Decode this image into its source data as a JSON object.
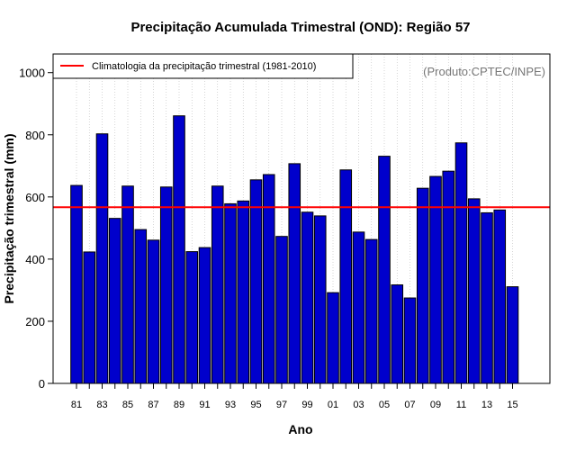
{
  "colors": {
    "bar": "#0000CC",
    "climatology": "#FF0000",
    "grid": "#BBBBBB",
    "credit": "#777777"
  },
  "chart_data": {
    "type": "bar",
    "title": "Precipitação Acumulada Trimestral (OND): Região 57",
    "xlabel": "Ano",
    "ylabel": "Precipitação trimestral (mm)",
    "ylim": [
      0,
      1060
    ],
    "yticks": [
      0,
      200,
      400,
      600,
      800,
      1000
    ],
    "categories": [
      "1981",
      "1982",
      "1983",
      "1984",
      "1985",
      "1986",
      "1987",
      "1988",
      "1989",
      "1990",
      "1991",
      "1992",
      "1993",
      "1994",
      "1995",
      "1996",
      "1997",
      "1998",
      "1999",
      "2000",
      "2001",
      "2002",
      "2003",
      "2004",
      "2005",
      "2006",
      "2007",
      "2008",
      "2009",
      "2010",
      "2011",
      "2012",
      "2013",
      "2014",
      "2015"
    ],
    "tick_labels": [
      "81",
      "83",
      "85",
      "87",
      "89",
      "91",
      "93",
      "95",
      "97",
      "99",
      "01",
      "03",
      "05",
      "07",
      "09",
      "11",
      "13",
      "15"
    ],
    "values": [
      637,
      423,
      803,
      531,
      635,
      495,
      461,
      632,
      861,
      424,
      437,
      635,
      578,
      587,
      655,
      672,
      473,
      707,
      551,
      539,
      292,
      687,
      487,
      463,
      731,
      317,
      275,
      628,
      666,
      683,
      774,
      594,
      549,
      558,
      311
    ],
    "climatology": 567,
    "legend": {
      "label": "Climatologia da precipitação trimestral (1981-2010)",
      "position": "top-left"
    },
    "credit": "(Produto:CPTEC/INPE)",
    "grid": true
  }
}
